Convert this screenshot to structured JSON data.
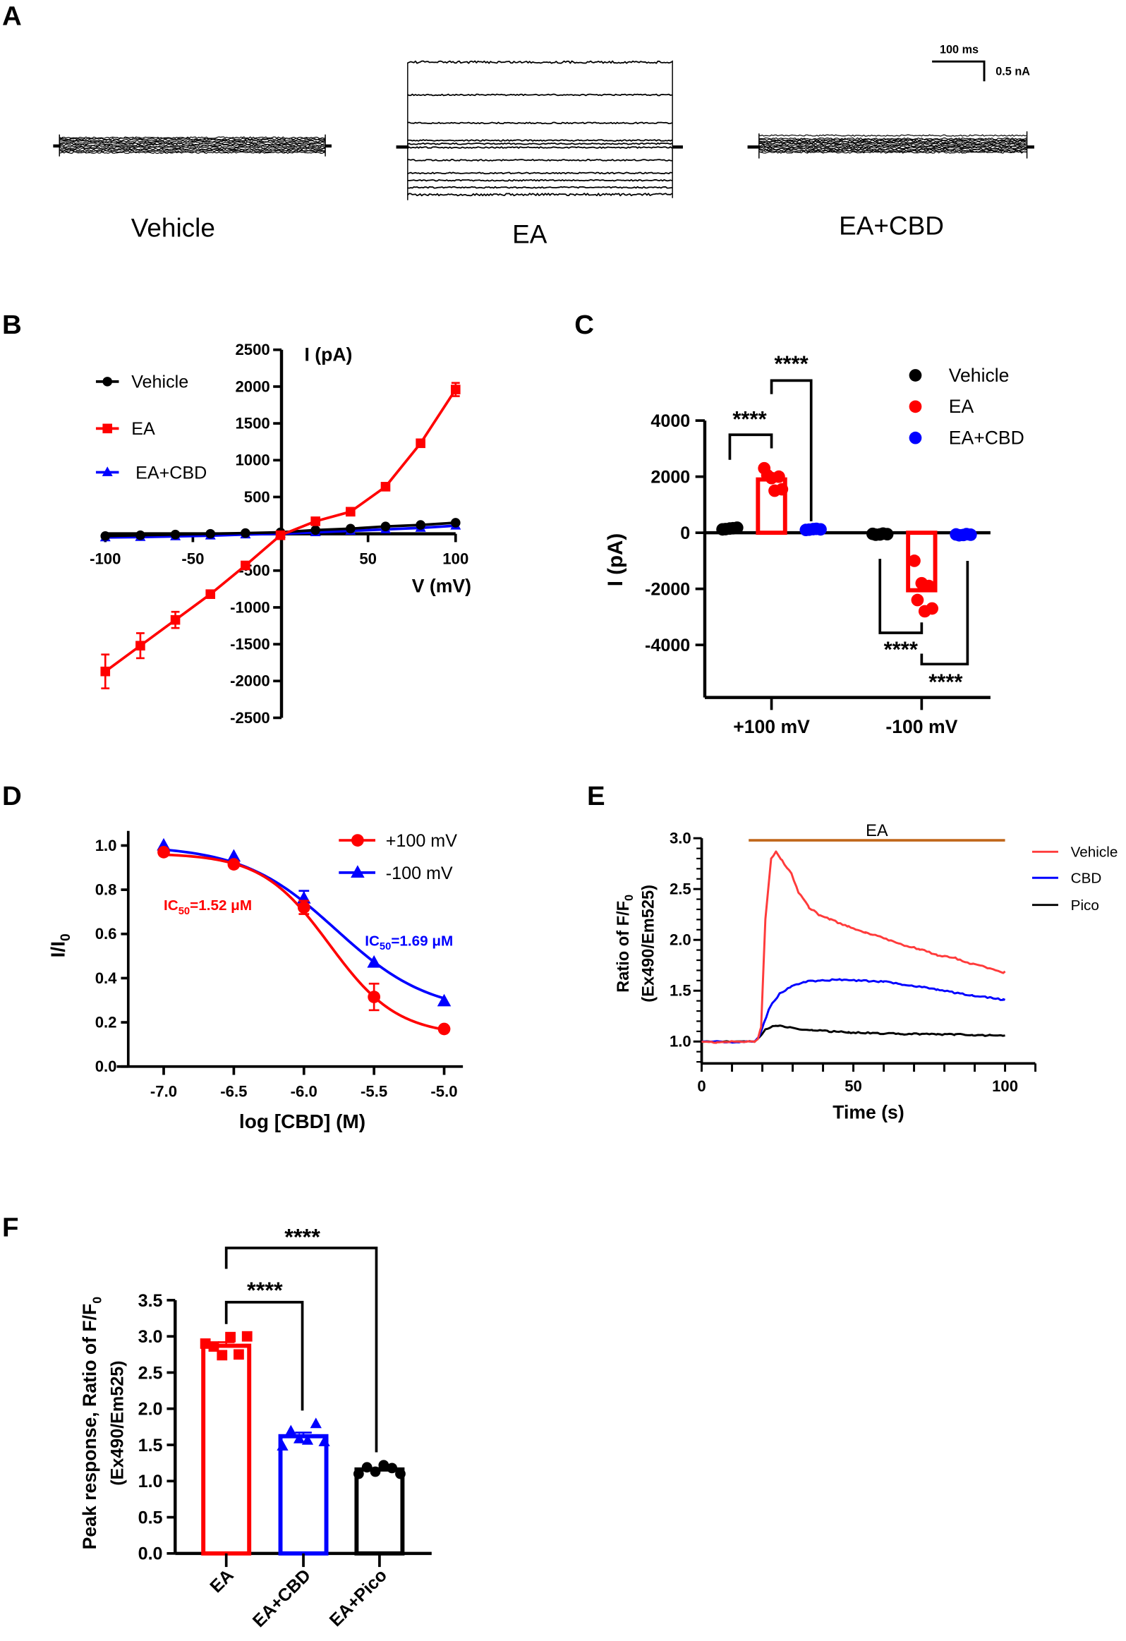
{
  "panels": {
    "a": "A",
    "b": "B",
    "c": "C",
    "d": "D",
    "e": "E",
    "f": "F"
  },
  "panel_a": {
    "conditions": [
      "Vehicle",
      "EA",
      "EA+CBD"
    ],
    "scale_time": "100 ms",
    "scale_current": "0.5 nA"
  },
  "chart_data": [
    {
      "panel": "B",
      "type": "line",
      "xlabel": "V (mV)",
      "ylabel": "I (pA)",
      "xlim": [
        -100,
        100
      ],
      "ylim": [
        -2500,
        2500
      ],
      "xticks": [
        "-100",
        "-50",
        "50",
        "100"
      ],
      "xtick_values": [
        -100,
        -50,
        50,
        100
      ],
      "yticks": [
        "2500",
        "2000",
        "1500",
        "1000",
        "500",
        "-500",
        "-1000",
        "-1500",
        "-2000",
        "-2500"
      ],
      "ytick_values": [
        2500,
        2000,
        1500,
        1000,
        500,
        -500,
        -1000,
        -1500,
        -2000,
        -2500
      ],
      "x": [
        -100,
        -80,
        -60,
        -40,
        -20,
        0,
        20,
        40,
        60,
        80,
        100
      ],
      "legend": "top-left",
      "series": [
        {
          "name": "Vehicle",
          "color": "#000000",
          "marker": "circle",
          "values": [
            -30,
            -20,
            -10,
            0,
            10,
            20,
            50,
            70,
            100,
            120,
            150
          ]
        },
        {
          "name": "EA",
          "color": "#ff0000",
          "marker": "square",
          "values": [
            -1870,
            -1520,
            -1170,
            -820,
            -430,
            -20,
            170,
            300,
            640,
            1230,
            1960
          ],
          "error": [
            230,
            170,
            110,
            0,
            0,
            0,
            0,
            0,
            0,
            0,
            90
          ]
        },
        {
          "name": "EA+CBD",
          "color": "#0000ff",
          "marker": "triangle",
          "values": [
            -50,
            -45,
            -35,
            -25,
            -10,
            0,
            20,
            40,
            60,
            80,
            110
          ]
        }
      ]
    },
    {
      "panel": "C",
      "type": "bar",
      "ylabel": "I (pA)",
      "ylim": [
        -6000,
        4000
      ],
      "yticks": [
        "4000",
        "2000",
        "0",
        "-2000",
        "-4000"
      ],
      "ytick_values": [
        4000,
        2000,
        0,
        -2000,
        -4000
      ],
      "categories": [
        "+100 mV",
        "-100 mV"
      ],
      "legend": "top-right",
      "series": [
        {
          "name": "Vehicle",
          "color": "#000000",
          "values": [
            150,
            -50
          ],
          "points": [
            [
              120,
              150,
              180,
              130,
              160
            ],
            [
              -40,
              -60,
              -50,
              -70,
              -30
            ]
          ]
        },
        {
          "name": "EA",
          "color": "#ff0000",
          "values": [
            1900,
            -2050
          ],
          "points": [
            [
              2300,
              1950,
              2000,
              2050,
              1500,
              1550
            ],
            [
              -1000,
              -1800,
              -1900,
              -2400,
              -2800,
              -2700
            ]
          ]
        },
        {
          "name": "EA+CBD",
          "color": "#0000ff",
          "values": [
            120,
            -70
          ],
          "points": [
            [
              100,
              130,
              120,
              110,
              140
            ],
            [
              -60,
              -80,
              -70,
              -90,
              -50
            ]
          ]
        }
      ],
      "significance": [
        "****",
        "****",
        "****",
        "****"
      ]
    },
    {
      "panel": "D",
      "type": "line",
      "xlabel": "log [CBD] (M)",
      "ylabel": {
        "main": "I/I",
        "sub": "0"
      },
      "xlim": [
        -7.2,
        -4.8
      ],
      "ylim": [
        0,
        1.05
      ],
      "xticks": [
        "-7.0",
        "-6.5",
        "-6.0",
        "-5.5",
        "-5.0"
      ],
      "xtick_values": [
        -7,
        -6.5,
        -6,
        -5.5,
        -5
      ],
      "yticks": [
        "0.0",
        "0.2",
        "0.4",
        "0.6",
        "0.8",
        "1.0"
      ],
      "ytick_values": [
        0,
        0.2,
        0.4,
        0.6,
        0.8,
        1.0
      ],
      "x": [
        -7,
        -6.5,
        -6,
        -5.5,
        -5
      ],
      "legend": "top-right",
      "series": [
        {
          "name": "+100 mV",
          "color": "#ff0000",
          "marker": "circle",
          "values": [
            0.97,
            0.915,
            0.72,
            0.315,
            0.17
          ],
          "error": [
            0,
            0,
            0.03,
            0.06,
            0
          ],
          "ic50": {
            "pre": "IC",
            "sub": "50",
            "post": "=1.52 μM"
          }
        },
        {
          "name": "-100 mV",
          "color": "#0000ff",
          "marker": "triangle",
          "values": [
            1.0,
            0.95,
            0.76,
            0.47,
            0.295
          ],
          "error": [
            0,
            0,
            0.035,
            0,
            0
          ],
          "ic50": {
            "pre": "IC",
            "sub": "50",
            "post": "=1.69 μM"
          }
        }
      ]
    },
    {
      "panel": "E",
      "type": "line",
      "xlabel": "Time (s)",
      "ylabel": {
        "line1": "Ratio of F/F",
        "sub": "0",
        "line2": "(Ex490/Em525)"
      },
      "xlim": [
        0,
        110
      ],
      "ylim": [
        0.78,
        3.0
      ],
      "xticks": [
        "0",
        "50",
        "100"
      ],
      "xtick_values": [
        0,
        50,
        100
      ],
      "yticks": [
        "1.0",
        "1.5",
        "2.0",
        "2.5",
        "3.0"
      ],
      "ytick_values": [
        1.0,
        1.5,
        2.0,
        2.5,
        3.0
      ],
      "annotation": {
        "label": "EA",
        "start": 15.5,
        "end": 100,
        "color": "#c0661a"
      },
      "legend": "right",
      "series": [
        {
          "name": "Vehicle",
          "color": "#ff3b3b",
          "x": [
            0,
            5,
            10,
            15,
            17.5,
            18.5,
            19.6,
            21,
            22.9,
            24.5,
            26.5,
            29.6,
            31.9,
            35.4,
            39,
            42.5,
            48.4,
            54,
            60,
            66,
            71.8,
            77.7,
            83.6,
            89.4,
            95.3,
            99.4,
            100
          ],
          "values": [
            1.0,
            0.99,
            1.0,
            1.0,
            1.0,
            1.02,
            1.14,
            2.2,
            2.8,
            2.87,
            2.78,
            2.65,
            2.47,
            2.32,
            2.24,
            2.2,
            2.13,
            2.07,
            2.02,
            1.95,
            1.91,
            1.85,
            1.82,
            1.76,
            1.72,
            1.68,
            1.69
          ]
        },
        {
          "name": "CBD",
          "color": "#0000ff",
          "x": [
            0,
            5,
            10,
            15,
            17.5,
            19,
            20.5,
            22.5,
            26,
            29.6,
            34.3,
            39,
            45.4,
            51.9,
            60,
            66,
            71.8,
            77.7,
            83.6,
            89.4,
            95.3,
            99.4,
            100
          ],
          "values": [
            1.0,
            1.0,
            0.99,
            1.0,
            1.0,
            1.05,
            1.18,
            1.34,
            1.48,
            1.54,
            1.59,
            1.6,
            1.61,
            1.6,
            1.59,
            1.56,
            1.54,
            1.51,
            1.48,
            1.45,
            1.43,
            1.41,
            1.41
          ]
        },
        {
          "name": "Pico",
          "color": "#000000",
          "x": [
            0,
            5,
            10,
            15,
            17.5,
            19,
            21,
            24.3,
            30.8,
            36.6,
            42,
            48.4,
            54,
            60,
            66,
            71.8,
            77.7,
            83.6,
            89.4,
            95.3,
            100
          ],
          "values": [
            1.0,
            1.0,
            1.0,
            1.0,
            1.0,
            1.04,
            1.12,
            1.16,
            1.13,
            1.11,
            1.1,
            1.09,
            1.085,
            1.08,
            1.075,
            1.075,
            1.07,
            1.07,
            1.065,
            1.06,
            1.06
          ]
        }
      ]
    },
    {
      "panel": "F",
      "type": "bar",
      "ylabel": {
        "line1": "Peak response, Ratio of F/F",
        "sub": "0",
        "line2": "(Ex490/Em525)"
      },
      "ylim": [
        0,
        3.5
      ],
      "yticks": [
        "0.0",
        "0.5",
        "1.0",
        "1.5",
        "2.0",
        "2.5",
        "3.0",
        "3.5"
      ],
      "ytick_values": [
        0,
        0.5,
        1,
        1.5,
        2,
        2.5,
        3,
        3.5
      ],
      "categories": [
        "EA",
        "EA+CBD",
        "EA+Pico"
      ],
      "colors": [
        "#ff0000",
        "#0000ff",
        "#000000"
      ],
      "markers": [
        "square",
        "triangle",
        "circle"
      ],
      "values": [
        2.87,
        1.62,
        1.16
      ],
      "error": [
        0.05,
        0.05,
        0.02
      ],
      "points": [
        [
          2.9,
          2.86,
          2.74,
          2.99,
          2.75,
          3.0
        ],
        [
          1.48,
          1.69,
          1.58,
          1.56,
          1.79,
          1.54
        ],
        [
          1.1,
          1.19,
          1.13,
          1.22,
          1.18,
          1.1
        ]
      ],
      "significance": [
        "****",
        "****"
      ]
    }
  ]
}
